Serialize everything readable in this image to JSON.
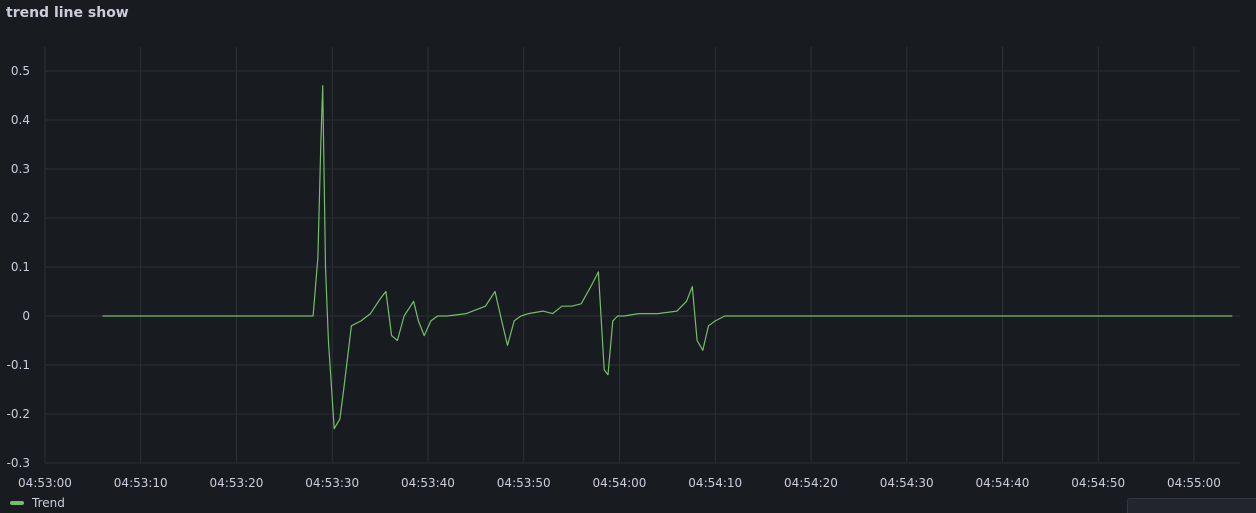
{
  "panel": {
    "title": "trend line show"
  },
  "theme": {
    "series_color": "#73bf69",
    "grid_color": "#2c2f34",
    "background": "#181b1f"
  },
  "chart_data": {
    "type": "line",
    "title": "trend line show",
    "xlabel": "",
    "ylabel": "",
    "ylim": [
      -0.3,
      0.5
    ],
    "y_ticks": [
      0.5,
      0.4,
      0.3,
      0.2,
      0.1,
      0,
      -0.1,
      -0.2,
      -0.3
    ],
    "y_tick_labels": [
      "0.5",
      "0.4",
      "0.3",
      "0.2",
      "0.1",
      "0",
      "-0.1",
      "-0.2",
      "-0.3"
    ],
    "x_tick_labels": [
      "04:53:00",
      "04:53:10",
      "04:53:20",
      "04:53:30",
      "04:53:40",
      "04:53:50",
      "04:54:00",
      "04:54:10",
      "04:54:20",
      "04:54:30",
      "04:54:40",
      "04:54:50",
      "04:55:00"
    ],
    "xlim": [
      "04:53:00",
      "04:55:04"
    ],
    "grid": true,
    "legend_position": "bottom-left",
    "series": [
      {
        "name": "Trend",
        "color": "#73bf69",
        "x": [
          "04:53:06",
          "04:53:12",
          "04:53:20",
          "04:53:28",
          "04:53:28.5",
          "04:53:28.8",
          "04:53:29",
          "04:53:29.3",
          "04:53:29.6",
          "04:53:30.2",
          "04:53:30.8",
          "04:53:31.2",
          "04:53:32",
          "04:53:33",
          "04:53:34",
          "04:53:35",
          "04:53:35.6",
          "04:53:36.2",
          "04:53:36.8",
          "04:53:37.5",
          "04:53:38.5",
          "04:53:39",
          "04:53:39.6",
          "04:53:40.3",
          "04:53:41",
          "04:53:42",
          "04:53:44",
          "04:53:46",
          "04:53:47",
          "04:53:47.7",
          "04:53:48.3",
          "04:53:49",
          "04:53:49.7",
          "04:53:50.5",
          "04:53:52",
          "04:53:53",
          "04:53:54",
          "04:53:55",
          "04:53:56",
          "04:53:57",
          "04:53:57.8",
          "04:53:58.4",
          "04:53:58.8",
          "04:53:59.3",
          "04:53:59.8",
          "04:54:00.5",
          "04:54:02",
          "04:54:04",
          "04:54:06",
          "04:54:07",
          "04:54:07.6",
          "04:54:08.1",
          "04:54:08.7",
          "04:54:09.3",
          "04:54:10",
          "04:54:11",
          "04:54:12",
          "04:54:30",
          "04:54:50",
          "04:55:04"
        ],
        "values": [
          0,
          0,
          0,
          0,
          0.12,
          0.35,
          0.47,
          0.1,
          -0.05,
          -0.23,
          -0.21,
          -0.15,
          -0.02,
          -0.01,
          0.005,
          0.035,
          0.05,
          -0.04,
          -0.05,
          0,
          0.03,
          -0.01,
          -0.04,
          -0.01,
          0,
          0,
          0.005,
          0.02,
          0.05,
          -0.01,
          -0.06,
          -0.01,
          0,
          0.005,
          0.01,
          0.005,
          0.02,
          0.02,
          0.025,
          0.06,
          0.09,
          -0.11,
          -0.12,
          -0.01,
          0,
          0,
          0.005,
          0.005,
          0.01,
          0.03,
          0.06,
          -0.05,
          -0.07,
          -0.02,
          -0.01,
          0,
          0,
          0,
          0,
          0
        ]
      }
    ]
  },
  "corner_widget": {
    "icon": "resize-handle-icon"
  }
}
